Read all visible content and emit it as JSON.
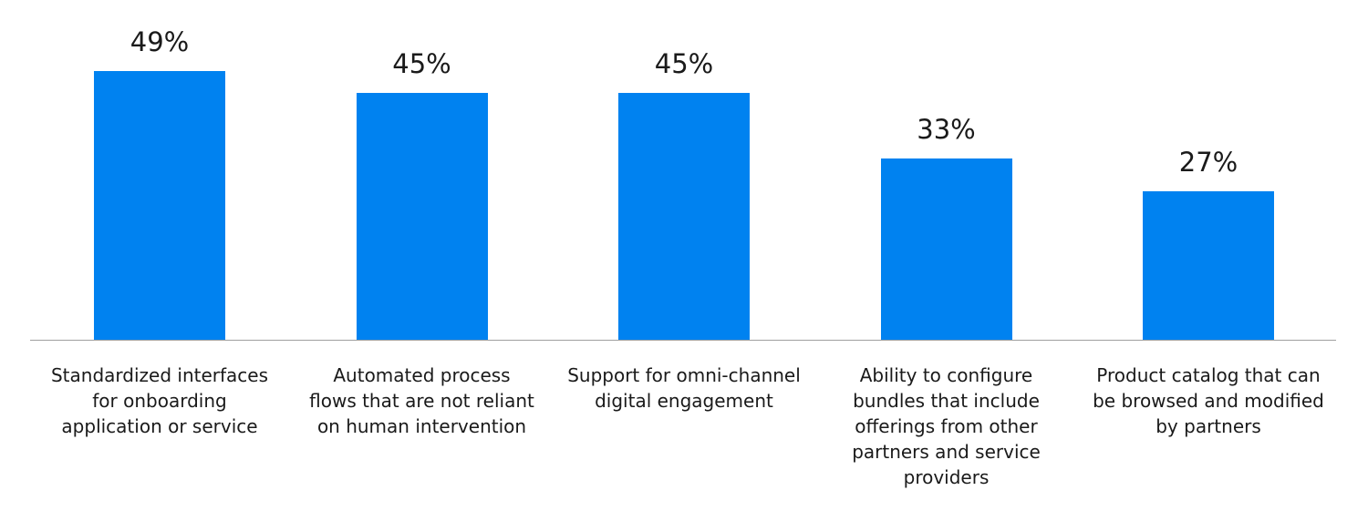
{
  "chart_data": {
    "type": "bar",
    "categories": [
      "Standardized interfaces\nfor onboarding\napplication or service",
      "Automated process\nflows that are not reliant\non human intervention",
      "Support for omni-channel\ndigital engagement",
      "Ability to configure\nbundles that include\nofferings from other\npartners and service\nproviders",
      "Product catalog that can\nbe browsed and modified\nby partners"
    ],
    "values": [
      49,
      45,
      45,
      33,
      27
    ],
    "value_labels": [
      "49%",
      "45%",
      "45%",
      "33%",
      "27%"
    ],
    "unit": "%",
    "ylim": [
      0,
      49
    ],
    "grid": false,
    "bar_color": "#0082F0",
    "title": "",
    "xlabel": "",
    "ylabel": ""
  }
}
